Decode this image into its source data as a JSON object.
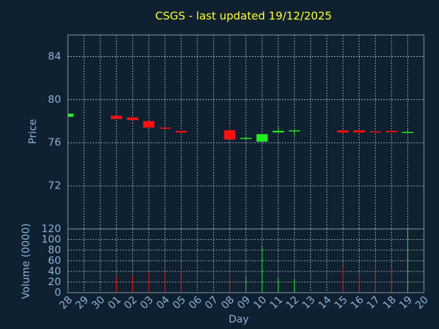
{
  "chart_data": {
    "type": "candlestick",
    "title": "CSGS - last updated 19/12/2025",
    "ylabel": "Price",
    "xlabel": "Day",
    "categories": [
      "28",
      "29",
      "30",
      "01",
      "02",
      "03",
      "04",
      "05",
      "06",
      "07",
      "08",
      "09",
      "10",
      "11",
      "12",
      "13",
      "14",
      "15",
      "16",
      "17",
      "18",
      "19",
      "20"
    ],
    "open": [
      78.4,
      null,
      null,
      78.5,
      78.35,
      78.0,
      77.4,
      77.1,
      null,
      null,
      77.15,
      76.35,
      76.1,
      76.95,
      77.05,
      null,
      null,
      77.15,
      77.15,
      77.05,
      77.1,
      76.9,
      null
    ],
    "high": [
      78.7,
      null,
      null,
      78.5,
      78.35,
      78.0,
      77.4,
      77.1,
      null,
      null,
      77.6,
      76.45,
      76.8,
      77.45,
      77.15,
      null,
      null,
      77.15,
      77.15,
      77.05,
      77.1,
      77.2,
      null
    ],
    "low": [
      78.4,
      null,
      null,
      78.2,
      78.1,
      77.4,
      77.3,
      76.95,
      null,
      null,
      76.3,
      76.35,
      76.1,
      76.95,
      76.65,
      null,
      null,
      76.8,
      76.95,
      76.98,
      76.98,
      76.9,
      null
    ],
    "close": [
      78.7,
      null,
      null,
      78.2,
      78.1,
      77.4,
      77.3,
      76.95,
      null,
      null,
      76.3,
      76.45,
      76.8,
      77.1,
      77.15,
      null,
      null,
      76.95,
      76.95,
      76.98,
      76.98,
      77.0,
      null
    ],
    "up_color": "#22ee22",
    "down_color": "#ff1111",
    "ylim": [
      68,
      86
    ],
    "yticks": [
      72,
      76,
      80,
      84
    ],
    "grid": true,
    "volume": {
      "label": "Volume (0000)",
      "values": [
        null,
        null,
        null,
        30,
        32,
        38,
        40,
        42,
        null,
        null,
        33,
        32,
        88,
        28,
        25,
        null,
        null,
        50,
        33,
        42,
        50,
        118,
        null
      ],
      "ylim": [
        0,
        120
      ],
      "yticks": [
        0,
        20,
        40,
        60,
        80,
        100,
        120
      ]
    }
  }
}
